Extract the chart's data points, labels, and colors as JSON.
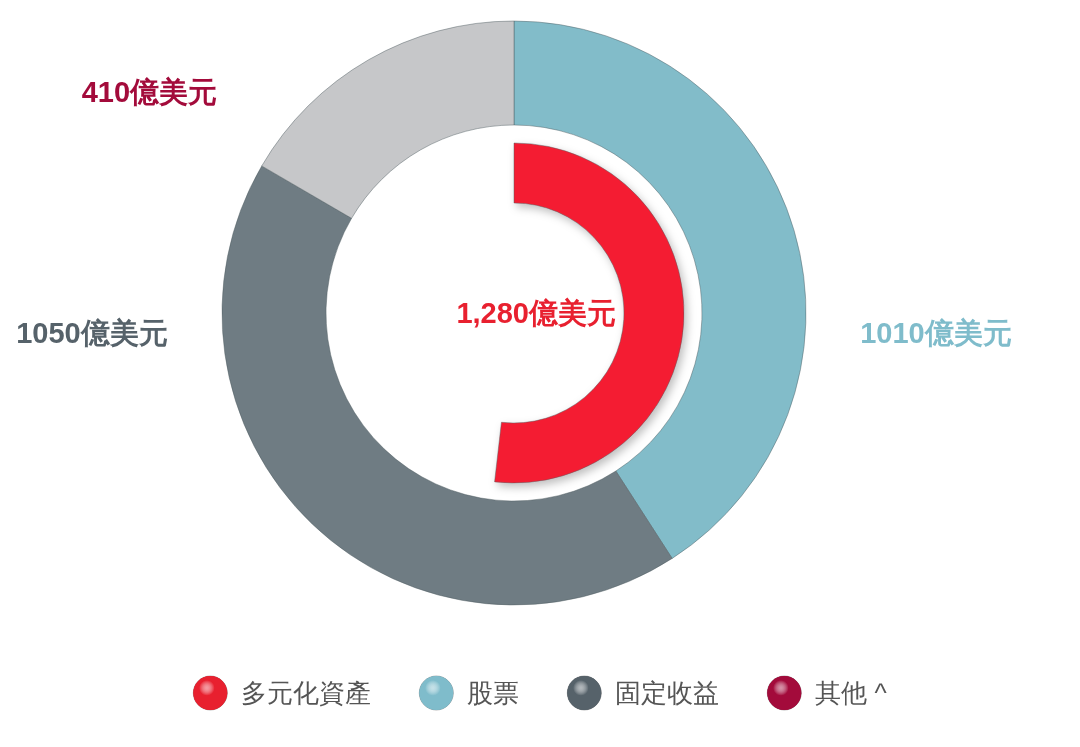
{
  "chart_data": {
    "type": "donut",
    "categories": [
      "多元化資產",
      "股票",
      "固定收益",
      "其他 ^"
    ],
    "colors": [
      "#e8202f",
      "#7fbccb",
      "#56626a",
      "#a30b3b"
    ],
    "series": [
      {
        "values": [
          1280,
          null,
          null,
          null
        ],
        "value_labels": [
          "1,280億美元",
          null,
          null,
          null
        ],
        "colors": [
          "#f41f32",
          null,
          null,
          null
        ]
      },
      {
        "values": [
          null,
          1010,
          1050,
          410
        ],
        "value_labels": [
          null,
          "1010億美元",
          "1050億美元",
          "410億美元"
        ],
        "colors": [
          null,
          "#82bcc9",
          "#6f7c83",
          "#c6c7c9"
        ]
      }
    ],
    "legend": "bottom"
  }
}
